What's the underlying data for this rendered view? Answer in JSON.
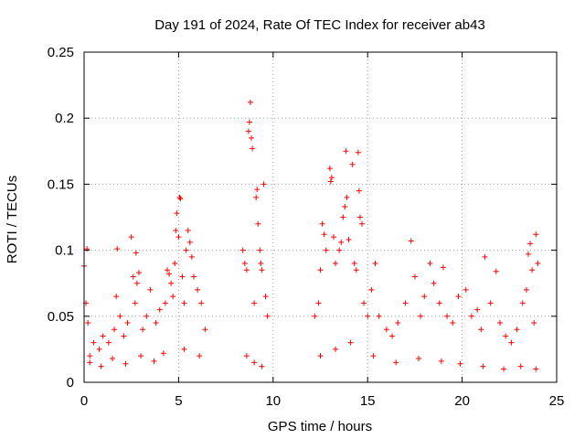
{
  "chart_data": {
    "type": "scatter",
    "title": "Day 191 of 2024, Rate Of TEC Index for receiver ab43",
    "xlabel": "GPS time / hours",
    "ylabel": "ROTI / TECUs",
    "xlim": [
      0,
      25
    ],
    "ylim": [
      0,
      0.25
    ],
    "xticks": [
      0,
      5,
      10,
      15,
      20,
      25
    ],
    "yticks": [
      0,
      0.05,
      0.1,
      0.15,
      0.2,
      0.25
    ],
    "xtick_labels": [
      "0",
      "5",
      "10",
      "15",
      "20",
      "25"
    ],
    "ytick_labels": [
      "0",
      "0.05",
      "0.1",
      "0.15",
      "0.2",
      "0.25"
    ],
    "grid": true,
    "marker": "+",
    "color": "#ff0000",
    "series": [
      {
        "values": [
          [
            0.0,
            0.088
          ],
          [
            0.1,
            0.06
          ],
          [
            0.15,
            0.101
          ],
          [
            0.2,
            0.045
          ],
          [
            0.3,
            0.02
          ],
          [
            0.5,
            0.03
          ],
          [
            0.8,
            0.025
          ],
          [
            1.0,
            0.035
          ],
          [
            1.3,
            0.03
          ],
          [
            1.6,
            0.04
          ],
          [
            1.7,
            0.065
          ],
          [
            1.75,
            0.101
          ],
          [
            1.9,
            0.05
          ],
          [
            2.1,
            0.035
          ],
          [
            2.3,
            0.045
          ],
          [
            2.5,
            0.11
          ],
          [
            2.6,
            0.08
          ],
          [
            2.7,
            0.06
          ],
          [
            2.75,
            0.098
          ],
          [
            2.8,
            0.075
          ],
          [
            2.9,
            0.083
          ],
          [
            3.1,
            0.04
          ],
          [
            3.3,
            0.05
          ],
          [
            3.5,
            0.07
          ],
          [
            3.8,
            0.045
          ],
          [
            4.0,
            0.055
          ],
          [
            4.3,
            0.06
          ],
          [
            4.4,
            0.085
          ],
          [
            4.5,
            0.082
          ],
          [
            4.6,
            0.075
          ],
          [
            4.7,
            0.065
          ],
          [
            4.8,
            0.09
          ],
          [
            4.85,
            0.115
          ],
          [
            4.9,
            0.128
          ],
          [
            5.0,
            0.11
          ],
          [
            5.05,
            0.14
          ],
          [
            5.1,
            0.139
          ],
          [
            5.2,
            0.08
          ],
          [
            5.3,
            0.06
          ],
          [
            5.4,
            0.1
          ],
          [
            5.5,
            0.115
          ],
          [
            5.6,
            0.106
          ],
          [
            5.7,
            0.095
          ],
          [
            5.8,
            0.08
          ],
          [
            6.0,
            0.07
          ],
          [
            6.2,
            0.06
          ],
          [
            6.4,
            0.04
          ],
          [
            8.4,
            0.1
          ],
          [
            8.5,
            0.09
          ],
          [
            8.6,
            0.085
          ],
          [
            8.7,
            0.19
          ],
          [
            8.75,
            0.197
          ],
          [
            8.8,
            0.212
          ],
          [
            8.85,
            0.185
          ],
          [
            8.9,
            0.177
          ],
          [
            9.0,
            0.06
          ],
          [
            9.1,
            0.14
          ],
          [
            9.15,
            0.146
          ],
          [
            9.2,
            0.12
          ],
          [
            9.3,
            0.1
          ],
          [
            9.35,
            0.09
          ],
          [
            9.4,
            0.085
          ],
          [
            9.5,
            0.15
          ],
          [
            9.6,
            0.065
          ],
          [
            9.7,
            0.05
          ],
          [
            12.2,
            0.05
          ],
          [
            12.4,
            0.06
          ],
          [
            12.5,
            0.085
          ],
          [
            12.6,
            0.12
          ],
          [
            12.7,
            0.112
          ],
          [
            12.8,
            0.1
          ],
          [
            13.0,
            0.162
          ],
          [
            13.05,
            0.152
          ],
          [
            13.1,
            0.155
          ],
          [
            13.2,
            0.11
          ],
          [
            13.3,
            0.09
          ],
          [
            13.5,
            0.1
          ],
          [
            13.6,
            0.106
          ],
          [
            13.7,
            0.125
          ],
          [
            13.8,
            0.133
          ],
          [
            13.9,
            0.14
          ],
          [
            13.85,
            0.175
          ],
          [
            14.0,
            0.108
          ],
          [
            14.2,
            0.165
          ],
          [
            14.3,
            0.09
          ],
          [
            14.4,
            0.085
          ],
          [
            14.5,
            0.174
          ],
          [
            14.55,
            0.145
          ],
          [
            14.6,
            0.125
          ],
          [
            14.7,
            0.12
          ],
          [
            14.8,
            0.06
          ],
          [
            15.0,
            0.05
          ],
          [
            15.2,
            0.07
          ],
          [
            15.4,
            0.09
          ],
          [
            15.6,
            0.05
          ],
          [
            16.0,
            0.04
          ],
          [
            16.3,
            0.035
          ],
          [
            16.6,
            0.045
          ],
          [
            17.0,
            0.06
          ],
          [
            17.3,
            0.107
          ],
          [
            17.5,
            0.08
          ],
          [
            17.8,
            0.05
          ],
          [
            18.0,
            0.065
          ],
          [
            18.3,
            0.09
          ],
          [
            18.5,
            0.075
          ],
          [
            18.8,
            0.06
          ],
          [
            19.0,
            0.087
          ],
          [
            19.2,
            0.05
          ],
          [
            19.5,
            0.045
          ],
          [
            19.8,
            0.065
          ],
          [
            20.2,
            0.07
          ],
          [
            20.5,
            0.05
          ],
          [
            20.8,
            0.055
          ],
          [
            21.0,
            0.04
          ],
          [
            21.2,
            0.095
          ],
          [
            21.5,
            0.06
          ],
          [
            21.8,
            0.084
          ],
          [
            22.0,
            0.045
          ],
          [
            22.3,
            0.035
          ],
          [
            22.6,
            0.03
          ],
          [
            22.9,
            0.04
          ],
          [
            23.2,
            0.06
          ],
          [
            23.4,
            0.07
          ],
          [
            23.5,
            0.097
          ],
          [
            23.6,
            0.105
          ],
          [
            23.7,
            0.085
          ],
          [
            23.8,
            0.045
          ],
          [
            23.9,
            0.112
          ],
          [
            24.0,
            0.09
          ],
          [
            0.3,
            0.015
          ],
          [
            0.9,
            0.012
          ],
          [
            1.5,
            0.018
          ],
          [
            2.2,
            0.014
          ],
          [
            3.0,
            0.02
          ],
          [
            3.7,
            0.016
          ],
          [
            4.2,
            0.022
          ],
          [
            5.3,
            0.025
          ],
          [
            6.1,
            0.02
          ],
          [
            8.6,
            0.02
          ],
          [
            9.0,
            0.015
          ],
          [
            9.4,
            0.012
          ],
          [
            12.5,
            0.02
          ],
          [
            13.3,
            0.025
          ],
          [
            14.1,
            0.03
          ],
          [
            15.3,
            0.02
          ],
          [
            16.5,
            0.015
          ],
          [
            17.7,
            0.018
          ],
          [
            18.9,
            0.016
          ],
          [
            19.9,
            0.014
          ],
          [
            21.1,
            0.012
          ],
          [
            22.2,
            0.01
          ],
          [
            23.1,
            0.012
          ],
          [
            23.9,
            0.01
          ]
        ]
      }
    ]
  }
}
